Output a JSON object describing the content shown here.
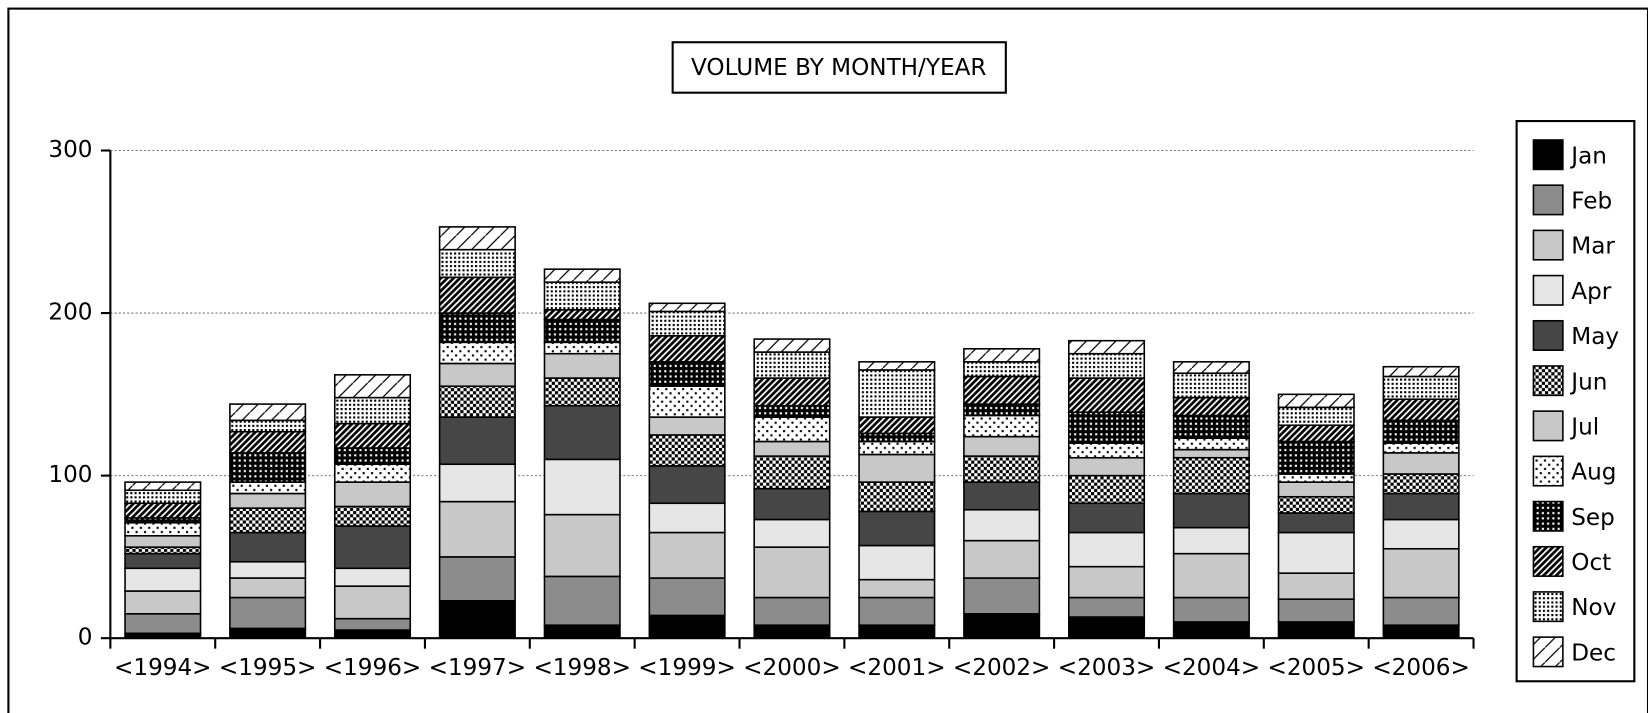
{
  "chart_data": {
    "type": "stacked_bar",
    "title": "VOLUME BY MONTH/YEAR",
    "categories": [
      "<1994>",
      "<1995>",
      "<1996>",
      "<1997>",
      "<1998>",
      "<1999>",
      "<2000>",
      "<2001>",
      "<2002>",
      "<2003>",
      "<2004>",
      "<2005>",
      "<2006>"
    ],
    "series": [
      {
        "name": "Jan",
        "color": "#000000",
        "pattern": "solid",
        "values": [
          3,
          6,
          5,
          23,
          8,
          14,
          8,
          8,
          15,
          13,
          10,
          10,
          8
        ]
      },
      {
        "name": "Feb",
        "color": "#8c8c8c",
        "pattern": "solid",
        "values": [
          12,
          19,
          7,
          27,
          30,
          23,
          17,
          17,
          22,
          12,
          15,
          14,
          17
        ]
      },
      {
        "name": "Mar",
        "color": "#c8c8c8",
        "pattern": "solid",
        "values": [
          14,
          12,
          20,
          34,
          38,
          28,
          31,
          11,
          23,
          19,
          27,
          16,
          30
        ]
      },
      {
        "name": "Apr",
        "color": "#e6e6e6",
        "pattern": "solid",
        "values": [
          14,
          10,
          11,
          23,
          34,
          18,
          17,
          21,
          19,
          21,
          16,
          25,
          18
        ]
      },
      {
        "name": "May",
        "color": "#464646",
        "pattern": "solid",
        "values": [
          9,
          18,
          26,
          29,
          33,
          23,
          19,
          21,
          17,
          18,
          21,
          12,
          16
        ]
      },
      {
        "name": "Jun",
        "color": "#000000",
        "pattern": "checker",
        "values": [
          4,
          15,
          12,
          19,
          17,
          19,
          20,
          18,
          16,
          17,
          22,
          10,
          12
        ]
      },
      {
        "name": "Jul",
        "color": "#c8c8c8",
        "pattern": "solid",
        "values": [
          7,
          9,
          15,
          14,
          15,
          11,
          9,
          17,
          12,
          11,
          5,
          9,
          13
        ]
      },
      {
        "name": "Aug",
        "color": "#000000",
        "pattern": "dots",
        "values": [
          8,
          7,
          11,
          13,
          7,
          19,
          15,
          8,
          13,
          9,
          7,
          5,
          6
        ]
      },
      {
        "name": "Sep",
        "color": "#000000",
        "pattern": "grid",
        "values": [
          3,
          18,
          10,
          18,
          14,
          15,
          7,
          5,
          7,
          19,
          14,
          20,
          14
        ]
      },
      {
        "name": "Oct",
        "color": "#000000",
        "pattern": "hatch",
        "values": [
          9,
          13,
          15,
          22,
          6,
          16,
          17,
          10,
          17,
          21,
          11,
          10,
          13
        ]
      },
      {
        "name": "Nov",
        "color": "#000000",
        "pattern": "finedots",
        "values": [
          8,
          7,
          16,
          17,
          17,
          15,
          16,
          29,
          9,
          15,
          15,
          11,
          14
        ]
      },
      {
        "name": "Dec",
        "color": "#000000",
        "pattern": "diagonal",
        "values": [
          5,
          10,
          14,
          14,
          8,
          5,
          8,
          5,
          8,
          8,
          7,
          8,
          6
        ]
      }
    ],
    "ylim": [
      0,
      300
    ],
    "yticks": [
      0,
      100,
      200,
      300
    ],
    "grid": true,
    "legend": "right"
  }
}
